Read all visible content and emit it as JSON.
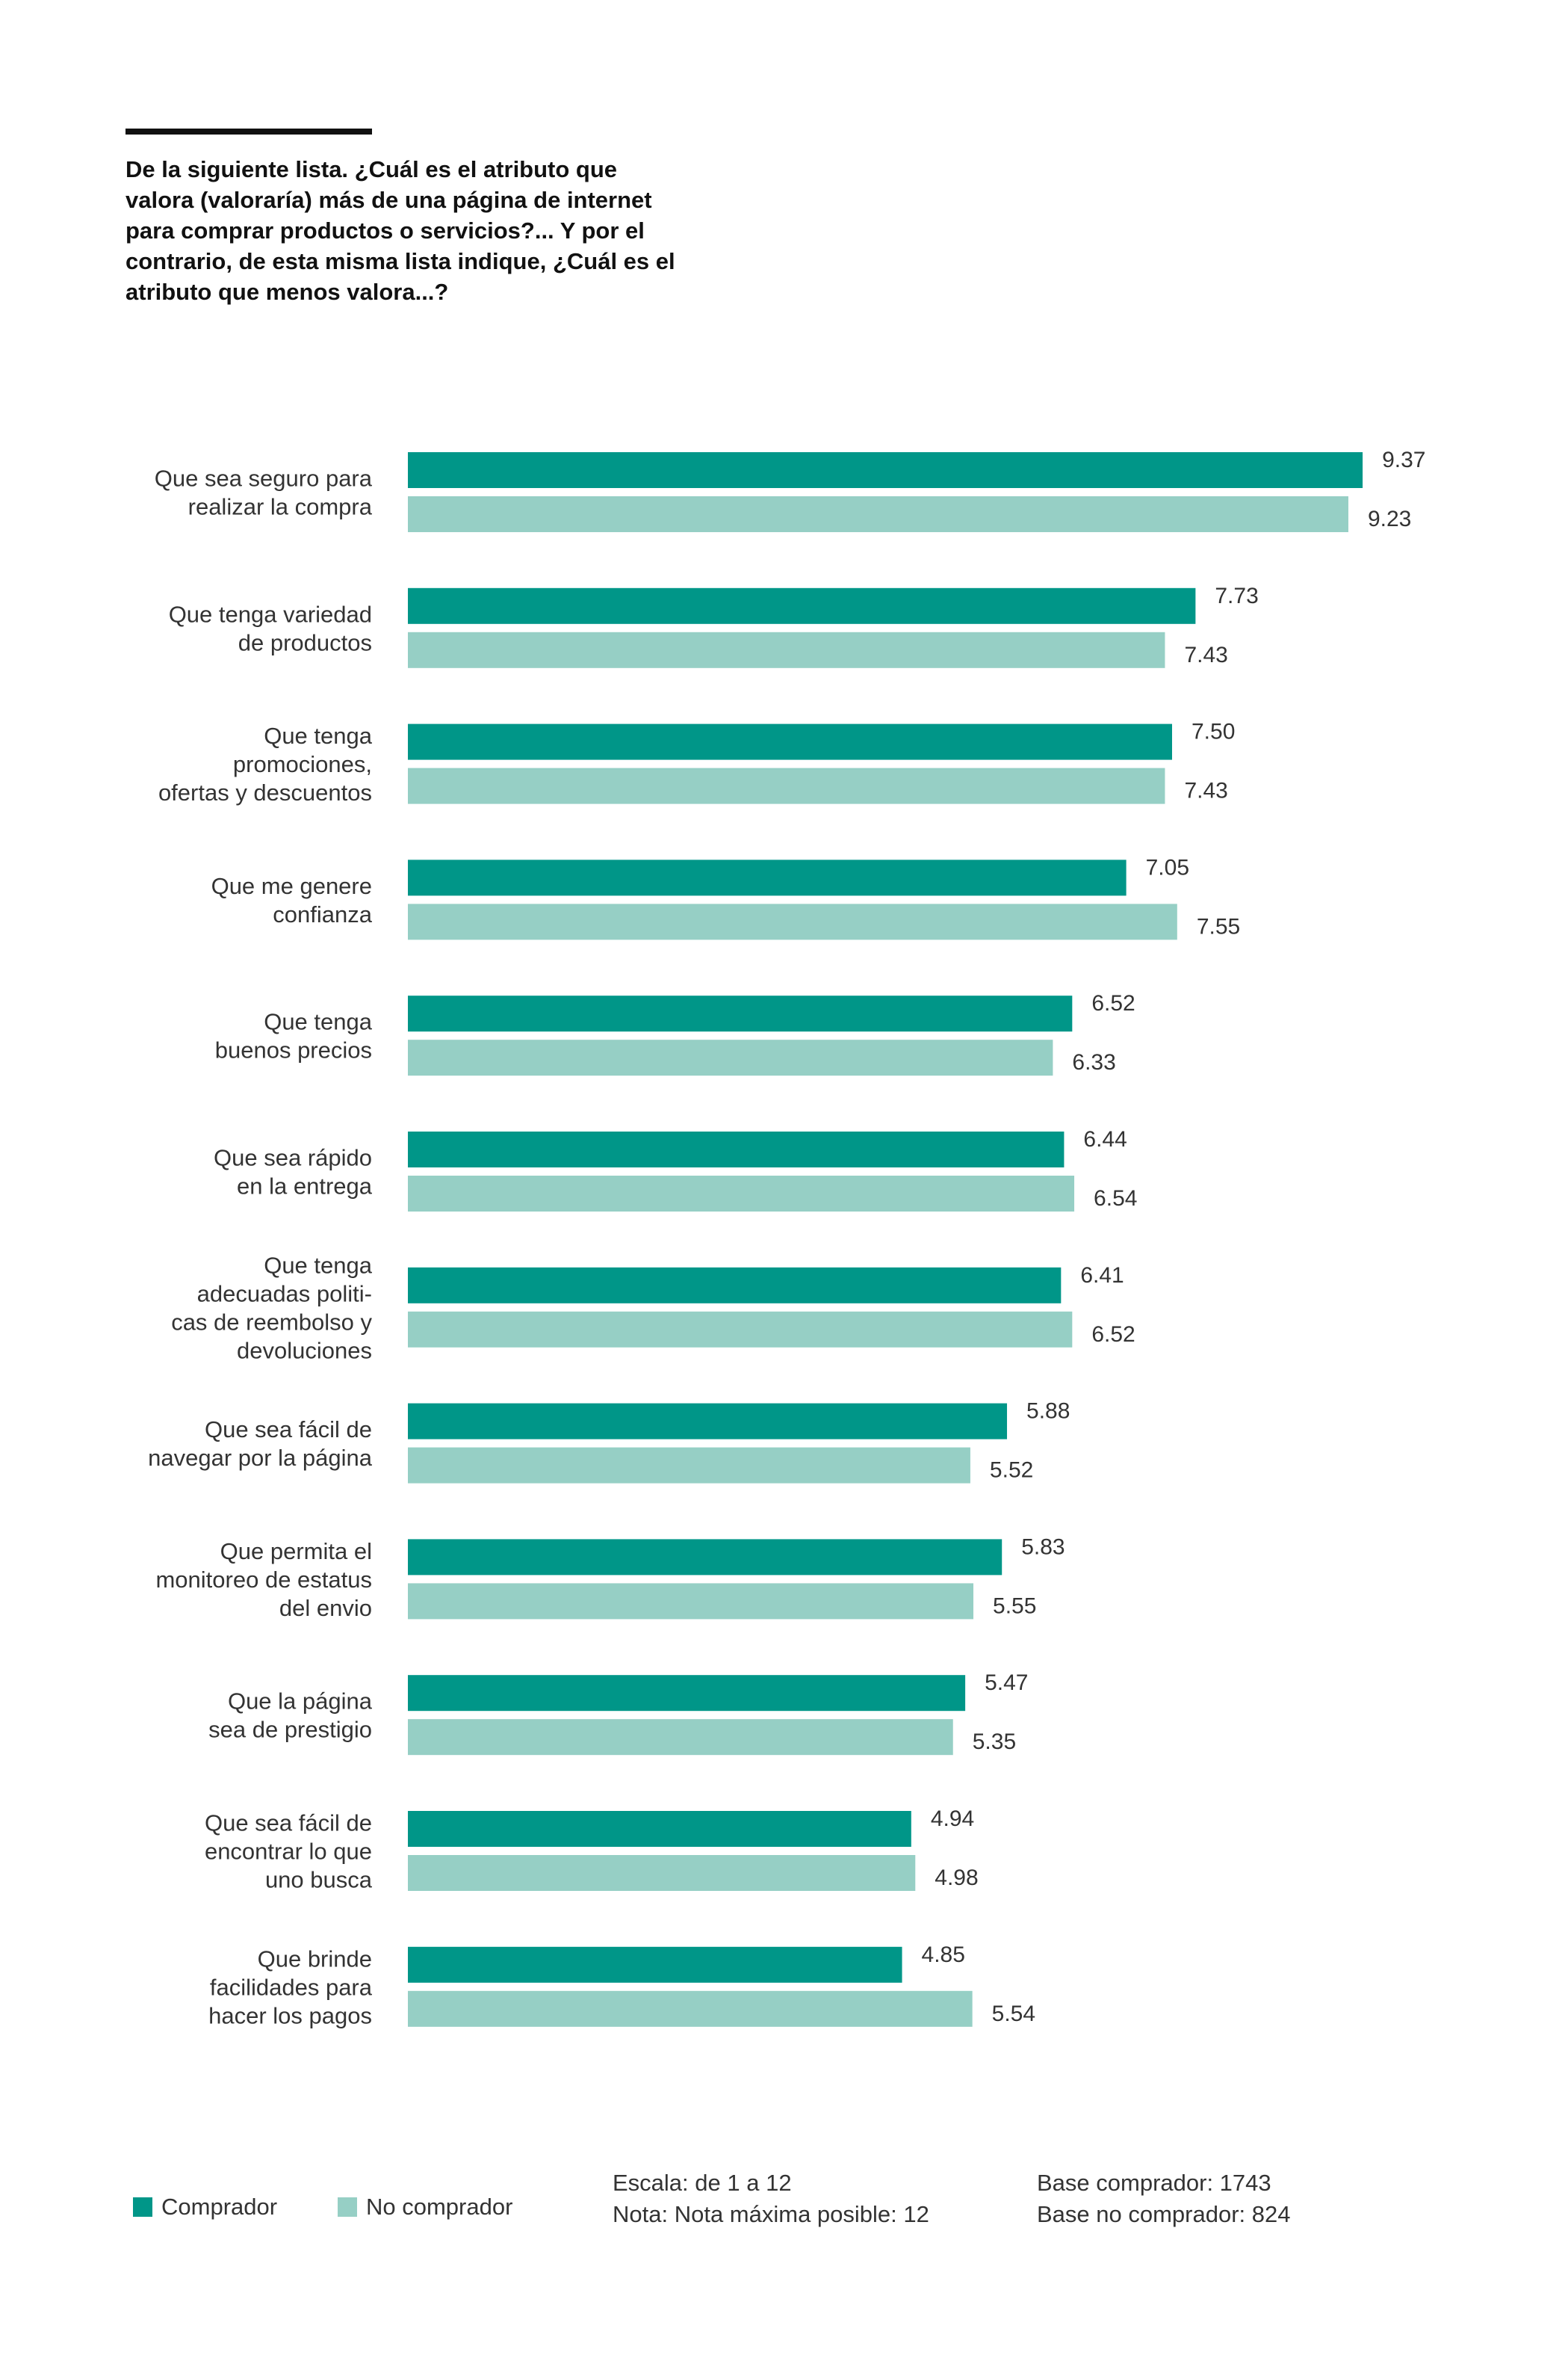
{
  "question": "De la siguiente lista. ¿Cuál es el atributo que valora (valoraría) más de una página de internet para comprar productos o servicios?... Y por el contrario, de esta misma lista indique, ¿Cuál es el atributo que menos valora...?",
  "colors": {
    "comprador": "#009688",
    "no_comprador": "#96CFC5"
  },
  "chart_data": {
    "type": "bar",
    "orientation": "horizontal",
    "categories": [
      "Que sea seguro para realizar la compra",
      "Que tenga variedad de productos",
      "Que tenga promociones, ofertas y descuentos",
      "Que me genere confianza",
      "Que tenga buenos precios",
      "Que sea rápido en la entrega",
      "Que tenga adecuadas politicas de reembolso y devoluciones",
      "Que sea fácil de navegar por la página",
      "Que permita el monitoreo de estatus del envio",
      "Que la página sea de prestigio",
      "Que sea fácil de encontrar lo que uno busca",
      "Que brinde facilidades para hacer los pagos"
    ],
    "category_lines": [
      [
        "Que sea seguro para",
        "realizar la compra"
      ],
      [
        "Que tenga variedad",
        "de productos"
      ],
      [
        "Que tenga",
        "promociones,",
        "ofertas y descuentos"
      ],
      [
        "Que me genere",
        "confianza"
      ],
      [
        "Que tenga",
        "buenos precios"
      ],
      [
        "Que sea rápido",
        "en la entrega"
      ],
      [
        "Que tenga",
        "adecuadas politi-",
        "cas de reembolso y",
        "devoluciones"
      ],
      [
        "Que sea fácil de",
        "navegar por la página"
      ],
      [
        "Que permita el",
        "monitoreo de estatus",
        "del envio"
      ],
      [
        "Que la página",
        "sea de prestigio"
      ],
      [
        "Que sea fácil de",
        "encontrar lo que",
        "uno busca"
      ],
      [
        "Que brinde",
        "facilidades para",
        "hacer los pagos"
      ]
    ],
    "series": [
      {
        "name": "Comprador",
        "values": [
          9.37,
          7.73,
          7.5,
          7.05,
          6.52,
          6.44,
          6.41,
          5.88,
          5.83,
          5.47,
          4.94,
          4.85
        ]
      },
      {
        "name": "No comprador",
        "values": [
          9.23,
          7.43,
          7.43,
          7.55,
          6.33,
          6.54,
          6.52,
          5.52,
          5.55,
          5.35,
          4.98,
          5.54
        ]
      }
    ],
    "xlim": [
      0,
      10
    ],
    "grid": false,
    "legend": "bottom-left"
  },
  "legend": {
    "comprador": "Comprador",
    "no_comprador": "No comprador"
  },
  "notes": {
    "scale": "Escala: de 1 a 12",
    "max": "Nota: Nota máxima posible: 12",
    "base_comprador": "Base comprador: 1743",
    "base_no_comprador": "Base no comprador: 824"
  }
}
